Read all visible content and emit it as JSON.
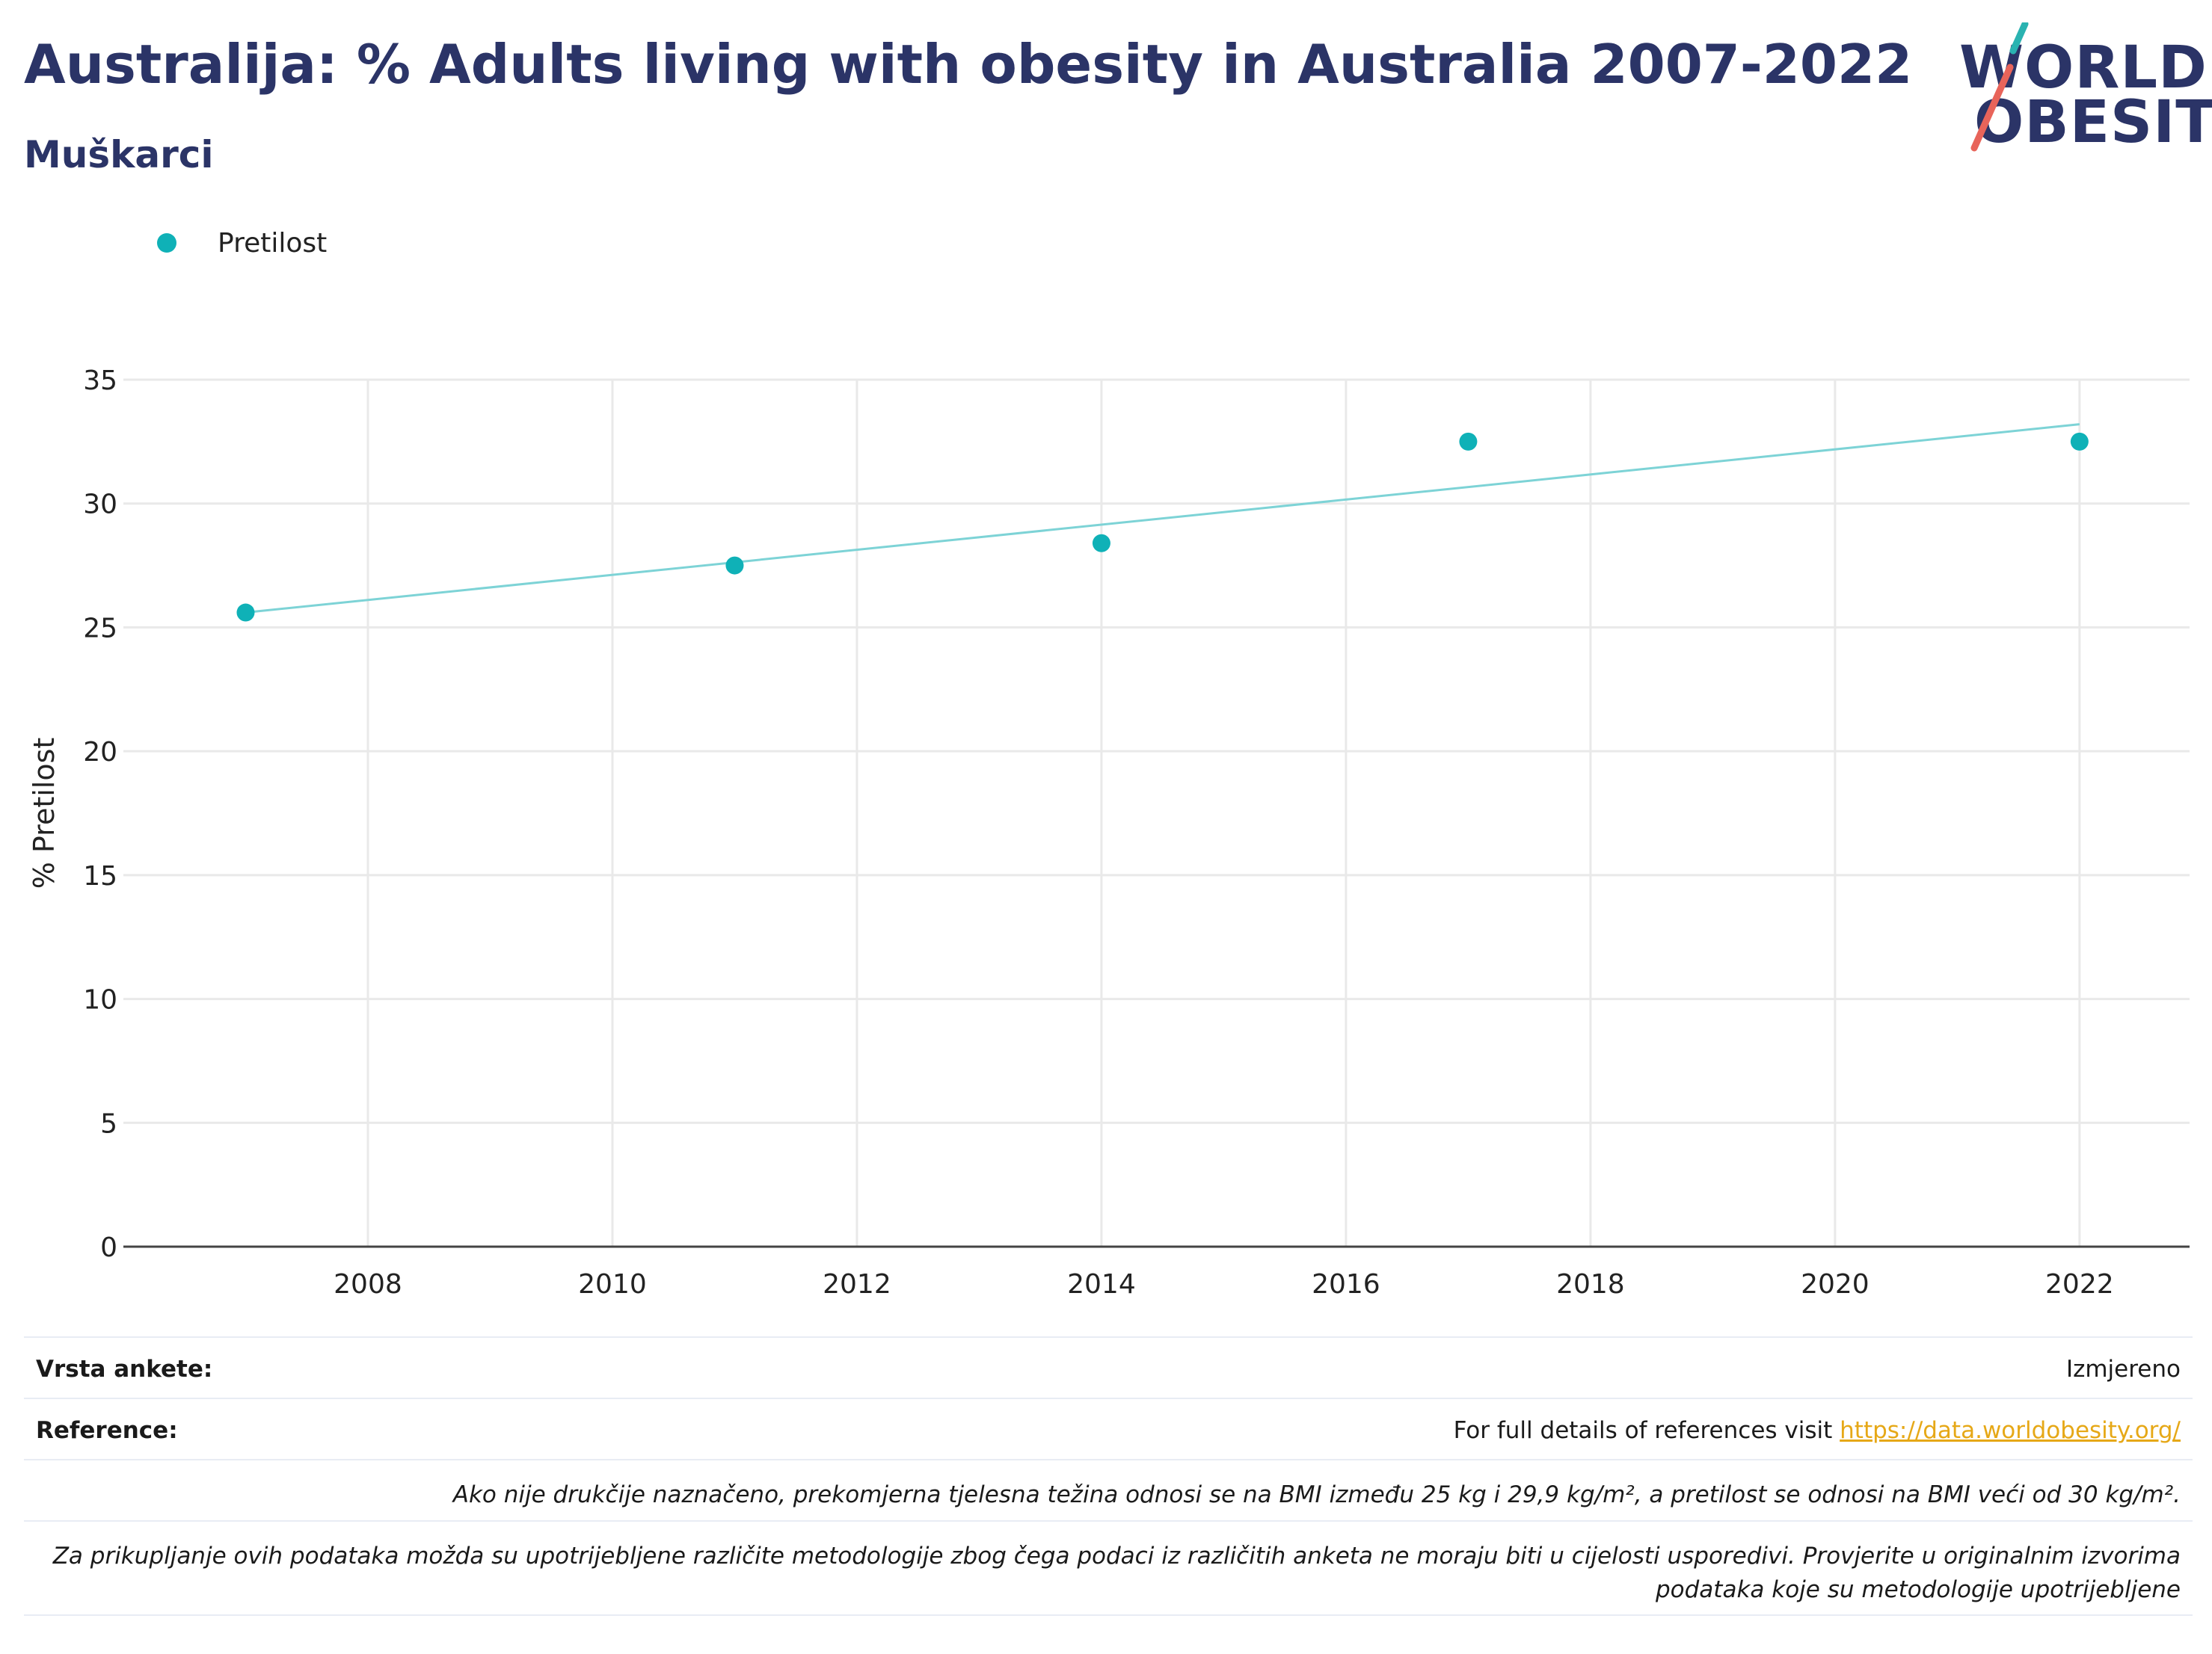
{
  "header": {
    "title": "Australija: % Adults living with obesity in Australia 2007-2022",
    "subtitle": "Muškarci"
  },
  "logo": {
    "line1": "WORLD",
    "line2": "OBESITY",
    "colors": {
      "text": "#2b3467",
      "slash_top": "#2ab3b1",
      "slash_bottom": "#e8645a"
    }
  },
  "legend": {
    "items": [
      {
        "label": "Pretilost",
        "color": "#0fb1b7"
      }
    ]
  },
  "colors": {
    "accent": "#0fb1b7",
    "trendline": "#7dd3d6",
    "title": "#2b3467",
    "link": "#e6a817"
  },
  "chart_data": {
    "type": "scatter",
    "title": "Australija: % Adults living with obesity in Australia 2007-2022",
    "subtitle": "Muškarci",
    "xlabel": "",
    "ylabel": "% Pretilost",
    "xlim": [
      2006.0,
      2022.9
    ],
    "ylim": [
      0,
      35
    ],
    "xticks": [
      2008,
      2010,
      2012,
      2014,
      2016,
      2018,
      2020,
      2022
    ],
    "yticks": [
      0,
      5,
      10,
      15,
      20,
      25,
      30,
      35
    ],
    "grid": true,
    "legend_position": "top-left",
    "series": [
      {
        "name": "Pretilost",
        "x": [
          2007,
          2011,
          2014,
          2017,
          2022
        ],
        "y": [
          25.6,
          27.5,
          28.4,
          32.5,
          32.5
        ]
      }
    ],
    "trendline": {
      "x": [
        2007,
        2022
      ],
      "y": [
        25.6,
        33.2
      ]
    }
  },
  "footer": {
    "survey_type_label": "Vrsta ankete:",
    "survey_type_value": "Izmjereno",
    "reference_label": "Reference:",
    "reference_text": "For full details of references visit ",
    "reference_link": "https://data.worldobesity.org/",
    "note1": "Ako nije drukčije naznačeno, prekomjerna tjelesna težina odnosi se na BMI između 25 kg i 29,9 kg/m², a pretilost se odnosi na BMI veći od 30 kg/m².",
    "note2_line1": "Za prikupljanje ovih podataka možda su upotrijebljene različite metodologije zbog čega podaci iz različitih anketa ne moraju biti u cijelosti usporedivi. Provjerite u originalnim izvorima",
    "note2_line2": "podataka koje su metodologije upotrijebljene"
  }
}
